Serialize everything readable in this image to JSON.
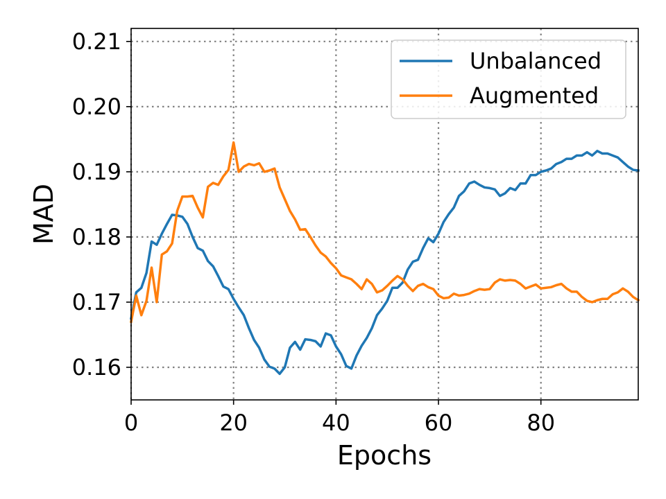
{
  "chart_data": {
    "type": "line",
    "title": "",
    "xlabel": "Epochs",
    "ylabel": "MAD",
    "xlim": [
      0,
      99
    ],
    "ylim": [
      0.155,
      0.212
    ],
    "xticks": [
      0,
      20,
      40,
      60,
      80
    ],
    "xtick_labels": [
      "0",
      "20",
      "40",
      "60",
      "80"
    ],
    "yticks": [
      0.16,
      0.17,
      0.18,
      0.19,
      0.2,
      0.21
    ],
    "ytick_labels": [
      "0.16",
      "0.17",
      "0.18",
      "0.19",
      "0.20",
      "0.21"
    ],
    "grid": true,
    "legend_position": "upper-right",
    "series": [
      {
        "name": "Unbalanced",
        "color": "#1f77b4",
        "x": [
          0,
          1,
          2,
          3,
          4,
          5,
          6,
          7,
          8,
          9,
          10,
          11,
          12,
          13,
          14,
          15,
          16,
          17,
          18,
          19,
          20,
          21,
          22,
          23,
          24,
          25,
          26,
          27,
          28,
          29,
          30,
          31,
          32,
          33,
          34,
          35,
          36,
          37,
          38,
          39,
          40,
          41,
          42,
          43,
          44,
          45,
          46,
          47,
          48,
          49,
          50,
          51,
          52,
          53,
          54,
          55,
          56,
          57,
          58,
          59,
          60,
          61,
          62,
          63,
          64,
          65,
          66,
          67,
          68,
          69,
          70,
          71,
          72,
          73,
          74,
          75,
          76,
          77,
          78,
          79,
          80,
          81,
          82,
          83,
          84,
          85,
          86,
          87,
          88,
          89,
          90,
          91,
          92,
          93,
          94,
          95,
          96,
          97,
          98,
          99
        ],
        "values": [
          0.1675,
          0.1715,
          0.1722,
          0.1745,
          0.1793,
          0.1788,
          0.1805,
          0.182,
          0.1834,
          0.1833,
          0.1831,
          0.182,
          0.18,
          0.1783,
          0.1779,
          0.1763,
          0.1755,
          0.174,
          0.1724,
          0.172,
          0.1705,
          0.1692,
          0.168,
          0.166,
          0.1642,
          0.163,
          0.1612,
          0.1601,
          0.1598,
          0.159,
          0.16,
          0.163,
          0.1639,
          0.1627,
          0.1643,
          0.1642,
          0.164,
          0.1632,
          0.1652,
          0.1649,
          0.1632,
          0.162,
          0.1602,
          0.1598,
          0.1618,
          0.1633,
          0.1645,
          0.166,
          0.168,
          0.169,
          0.1702,
          0.1722,
          0.1722,
          0.173,
          0.175,
          0.1762,
          0.1765,
          0.1783,
          0.1798,
          0.1792,
          0.1805,
          0.1823,
          0.1835,
          0.1845,
          0.1863,
          0.187,
          0.1882,
          0.1885,
          0.188,
          0.1876,
          0.1875,
          0.1873,
          0.1863,
          0.1867,
          0.1875,
          0.1872,
          0.1882,
          0.1882,
          0.1895,
          0.1895,
          0.19,
          0.1902,
          0.1905,
          0.1912,
          0.1915,
          0.192,
          0.192,
          0.1925,
          0.1925,
          0.193,
          0.1925,
          0.1932,
          0.1928,
          0.1928,
          0.1925,
          0.1922,
          0.1915,
          0.1908,
          0.1903,
          0.1902
        ]
      },
      {
        "name": "Augmented",
        "color": "#ff7f0e",
        "x": [
          0,
          1,
          2,
          3,
          4,
          5,
          6,
          7,
          8,
          9,
          10,
          11,
          12,
          13,
          14,
          15,
          16,
          17,
          18,
          19,
          20,
          21,
          22,
          23,
          24,
          25,
          26,
          27,
          28,
          29,
          30,
          31,
          32,
          33,
          34,
          35,
          36,
          37,
          38,
          39,
          40,
          41,
          42,
          43,
          44,
          45,
          46,
          47,
          48,
          49,
          50,
          51,
          52,
          53,
          54,
          55,
          56,
          57,
          58,
          59,
          60,
          61,
          62,
          63,
          64,
          65,
          66,
          67,
          68,
          69,
          70,
          71,
          72,
          73,
          74,
          75,
          76,
          77,
          78,
          79,
          80,
          81,
          82,
          83,
          84,
          85,
          86,
          87,
          88,
          89,
          90,
          91,
          92,
          93,
          94,
          95,
          96,
          97,
          98,
          99
        ],
        "values": [
          0.167,
          0.171,
          0.168,
          0.1702,
          0.1753,
          0.17,
          0.1773,
          0.1778,
          0.179,
          0.184,
          0.1862,
          0.1862,
          0.1863,
          0.1845,
          0.183,
          0.1877,
          0.1883,
          0.188,
          0.1893,
          0.1903,
          0.1945,
          0.19,
          0.1908,
          0.1912,
          0.191,
          0.1913,
          0.19,
          0.1902,
          0.1905,
          0.1876,
          0.1858,
          0.184,
          0.1827,
          0.1811,
          0.1812,
          0.18,
          0.1787,
          0.1776,
          0.177,
          0.176,
          0.1752,
          0.1741,
          0.1738,
          0.1735,
          0.1728,
          0.172,
          0.1735,
          0.1728,
          0.1715,
          0.1718,
          0.1725,
          0.1733,
          0.174,
          0.1735,
          0.1725,
          0.1717,
          0.1725,
          0.1728,
          0.1723,
          0.172,
          0.171,
          0.1706,
          0.1707,
          0.1713,
          0.171,
          0.1711,
          0.1713,
          0.1717,
          0.172,
          0.1719,
          0.172,
          0.173,
          0.1735,
          0.1733,
          0.1734,
          0.1733,
          0.1728,
          0.1721,
          0.1724,
          0.1727,
          0.1721,
          0.1722,
          0.1723,
          0.1726,
          0.1728,
          0.1721,
          0.1716,
          0.1716,
          0.1708,
          0.1702,
          0.17,
          0.1703,
          0.1705,
          0.1705,
          0.1712,
          0.1715,
          0.1721,
          0.1716,
          0.1708,
          0.1703
        ]
      }
    ]
  }
}
